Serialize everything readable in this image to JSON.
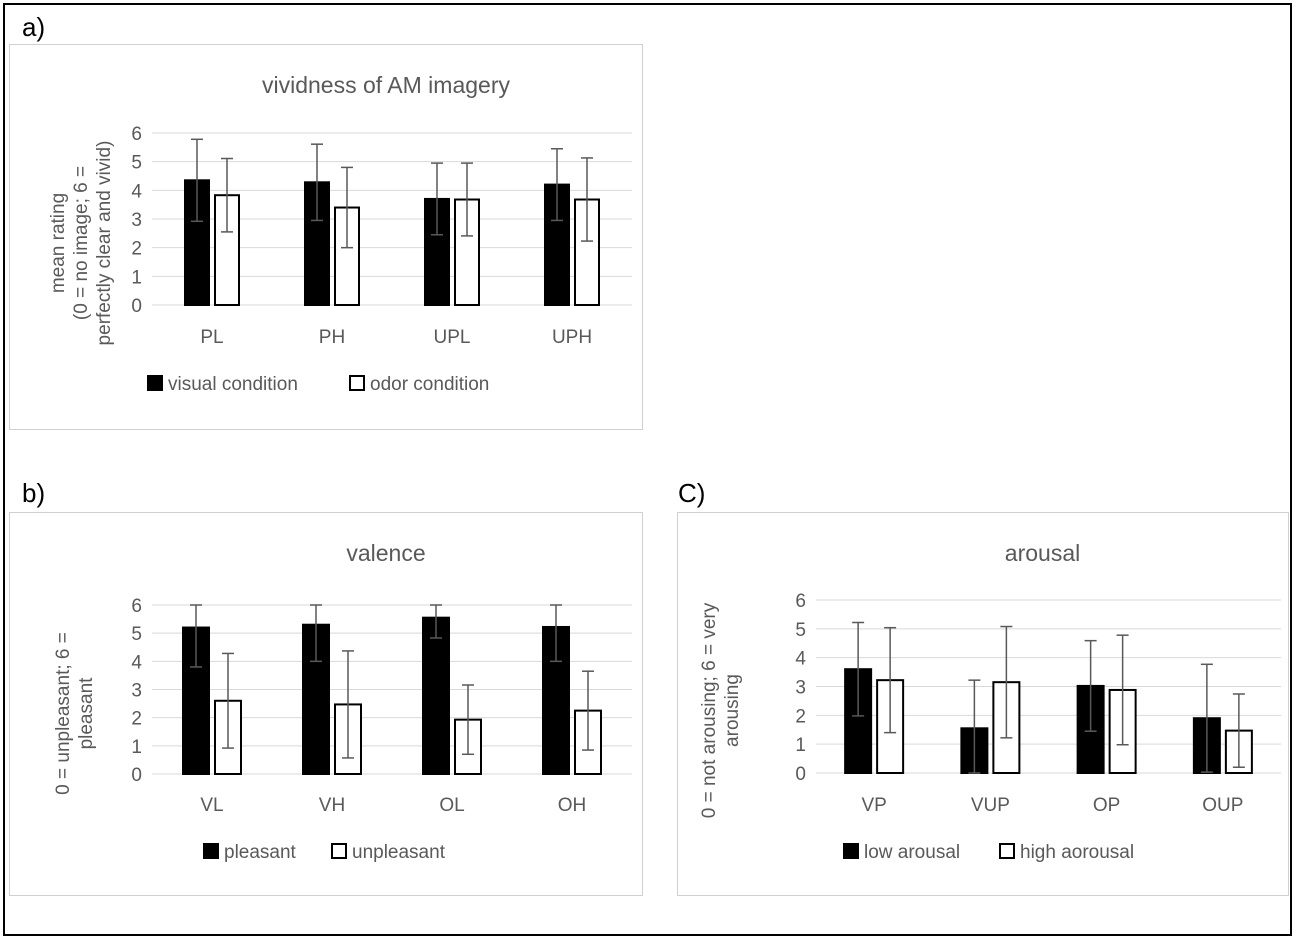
{
  "colors": {
    "filled": "#000000",
    "hollow": "#ffffff",
    "grid": "#d9d9d9",
    "error": "#595959",
    "text": "#595959"
  },
  "panel_labels": [
    "a)",
    "b)",
    "C)"
  ],
  "chart_data": [
    {
      "type": "bar",
      "title": "vividness of AM imagery",
      "ylabel": "mean rating\n(0 = no image; 6 =\nperfectly clear and vivid)",
      "xlabel": "",
      "ylim": [
        0,
        6
      ],
      "yticks": [
        0,
        1,
        2,
        3,
        4,
        5,
        6
      ],
      "categories": [
        "PL",
        "PH",
        "UPL",
        "UPH"
      ],
      "legend_position": "bottom",
      "grid": true,
      "series": [
        {
          "name": "visual condition",
          "style": "filled",
          "values": [
            4.35,
            4.28,
            3.7,
            4.2
          ],
          "errors": [
            1.43,
            1.33,
            1.25,
            1.25
          ]
        },
        {
          "name": "odor condition",
          "style": "hollow",
          "values": [
            3.83,
            3.4,
            3.68,
            3.68
          ],
          "errors": [
            1.28,
            1.4,
            1.27,
            1.45
          ]
        }
      ]
    },
    {
      "type": "bar",
      "title": "valence",
      "ylabel": "0 = unpleasant; 6 =\npleasant",
      "xlabel": "",
      "ylim": [
        0,
        6
      ],
      "yticks": [
        0,
        1,
        2,
        3,
        4,
        5,
        6
      ],
      "categories": [
        "VL",
        "VH",
        "OL",
        "OH"
      ],
      "legend_position": "bottom",
      "grid": true,
      "series": [
        {
          "name": "pleasant",
          "style": "filled",
          "values": [
            5.2,
            5.3,
            5.55,
            5.22
          ],
          "errors": [
            1.4,
            1.3,
            0.72,
            1.22
          ]
        },
        {
          "name": "unpleasant",
          "style": "hollow",
          "values": [
            2.6,
            2.47,
            1.93,
            2.25
          ],
          "errors": [
            1.68,
            1.9,
            1.23,
            1.4
          ]
        }
      ]
    },
    {
      "type": "bar",
      "title": "arousal",
      "ylabel": "0 = not arousing; 6 = very\narousing",
      "xlabel": "",
      "ylim": [
        0,
        6
      ],
      "yticks": [
        0,
        1,
        2,
        3,
        4,
        5,
        6
      ],
      "categories": [
        "VP",
        "VUP",
        "OP",
        "OUP"
      ],
      "legend_position": "bottom",
      "grid": true,
      "series": [
        {
          "name": "low arousal",
          "style": "filled",
          "values": [
            3.6,
            1.55,
            3.02,
            1.9
          ],
          "errors": [
            1.62,
            1.67,
            1.57,
            1.87
          ]
        },
        {
          "name": "high aorousal",
          "style": "hollow",
          "values": [
            3.22,
            3.15,
            2.88,
            1.47
          ],
          "errors": [
            1.82,
            1.93,
            1.9,
            1.27
          ]
        }
      ]
    }
  ]
}
